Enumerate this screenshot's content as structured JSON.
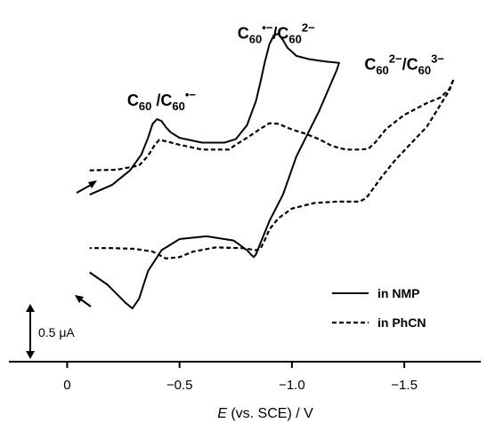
{
  "chart_data": {
    "type": "line",
    "x_axis": {
      "label_italic": "E",
      "label_rest": " (vs. SCE) / V",
      "ticks": [
        {
          "value": 0,
          "label": "0"
        },
        {
          "value": -0.5,
          "label": "−0.5"
        },
        {
          "value": -1.0,
          "label": "−1.0"
        },
        {
          "value": -1.5,
          "label": "−1.5"
        }
      ],
      "xlim": [
        0.18,
        -1.86
      ],
      "reversed": true
    },
    "y_axis": {
      "units": "μA",
      "ylim": [
        -2.3,
        2.35
      ],
      "shown": false
    },
    "scale_bar": {
      "value": 0.5,
      "label": "0.5 μA"
    },
    "legend": {
      "placement": "bottom-right",
      "entries": [
        {
          "label": "in NMP",
          "style": "solid"
        },
        {
          "label": "in PhCN",
          "style": "dashed"
        }
      ]
    },
    "annotations": [
      {
        "id": "first",
        "parts": [
          {
            "t": "C"
          },
          {
            "t": "60",
            "sub": true
          },
          {
            "t": " /C"
          },
          {
            "t": "60",
            "sub": true
          },
          {
            "t": "•−",
            "sup": true
          }
        ],
        "x": -0.42,
        "y": 1.08
      },
      {
        "id": "second",
        "parts": [
          {
            "t": "C"
          },
          {
            "t": "60",
            "sub": true
          },
          {
            "t": "•−",
            "sup": true
          },
          {
            "t": "/C"
          },
          {
            "t": "60",
            "sub": true
          },
          {
            "t": "2−",
            "sup": true
          }
        ],
        "x": -0.93,
        "y": 2.05
      },
      {
        "id": "third",
        "parts": [
          {
            "t": "C"
          },
          {
            "t": "60",
            "sub": true
          },
          {
            "t": "2−",
            "sup": true
          },
          {
            "t": "/C"
          },
          {
            "t": "60",
            "sub": true
          },
          {
            "t": "3−",
            "sup": true
          }
        ],
        "x": -1.5,
        "y": 1.6
      }
    ],
    "series": [
      {
        "name": "in NMP",
        "style": "solid",
        "x": [
          -0.1,
          -0.2,
          -0.28,
          -0.33,
          -0.36,
          -0.38,
          -0.4,
          -0.42,
          -0.44,
          -0.46,
          -0.5,
          -0.6,
          -0.7,
          -0.75,
          -0.8,
          -0.84,
          -0.86,
          -0.88,
          -0.9,
          -0.92,
          -0.94,
          -0.96,
          -0.98,
          -1.02,
          -1.08,
          -1.15,
          -1.21,
          -1.2,
          -1.12,
          -1.02,
          -0.96,
          -0.9,
          -0.86,
          -0.84,
          -0.83,
          -0.82,
          -0.8,
          -0.74,
          -0.62,
          -0.5,
          -0.42,
          -0.36,
          -0.32,
          -0.29,
          -0.26,
          -0.18,
          -0.1
        ],
        "y": [
          -0.2,
          -0.06,
          0.15,
          0.38,
          0.62,
          0.82,
          0.89,
          0.86,
          0.77,
          0.7,
          0.62,
          0.55,
          0.55,
          0.6,
          0.8,
          1.15,
          1.42,
          1.72,
          1.97,
          2.1,
          2.12,
          2.03,
          1.92,
          1.8,
          1.75,
          1.72,
          1.7,
          1.6,
          1.0,
          0.35,
          -0.2,
          -0.58,
          -0.9,
          -1.06,
          -1.1,
          -1.07,
          -1.0,
          -0.86,
          -0.8,
          -0.84,
          -1.0,
          -1.3,
          -1.7,
          -1.84,
          -1.76,
          -1.5,
          -1.32
        ]
      },
      {
        "name": "in PhCN",
        "style": "dashed",
        "x": [
          -0.1,
          -0.22,
          -0.32,
          -0.36,
          -0.39,
          -0.41,
          -0.44,
          -0.5,
          -0.6,
          -0.7,
          -0.72,
          -0.75,
          -0.8,
          -0.86,
          -0.9,
          -0.94,
          -1.0,
          -1.06,
          -1.12,
          -1.18,
          -1.24,
          -1.3,
          -1.34,
          -1.37,
          -1.42,
          -1.5,
          -1.6,
          -1.66,
          -1.7,
          -1.72,
          -1.7,
          -1.6,
          -1.46,
          -1.4,
          -1.36,
          -1.33,
          -1.3,
          -1.26,
          -1.2,
          -1.1,
          -1.0,
          -0.94,
          -0.9,
          -0.88,
          -0.86,
          -0.84,
          -0.78,
          -0.66,
          -0.56,
          -0.5,
          -0.44,
          -0.38,
          -0.3,
          -0.2,
          -0.1
        ],
        "y": [
          0.15,
          0.16,
          0.22,
          0.36,
          0.52,
          0.59,
          0.57,
          0.52,
          0.45,
          0.45,
          0.45,
          0.52,
          0.62,
          0.75,
          0.83,
          0.82,
          0.74,
          0.68,
          0.6,
          0.5,
          0.45,
          0.45,
          0.46,
          0.55,
          0.75,
          0.95,
          1.12,
          1.2,
          1.32,
          1.47,
          1.3,
          0.78,
          0.3,
          0.06,
          -0.12,
          -0.25,
          -0.3,
          -0.3,
          -0.3,
          -0.32,
          -0.4,
          -0.54,
          -0.7,
          -0.85,
          -0.98,
          -1.0,
          -0.97,
          -0.96,
          -1.02,
          -1.1,
          -1.12,
          -1.02,
          -0.98,
          -0.97,
          -0.97
        ]
      }
    ]
  }
}
